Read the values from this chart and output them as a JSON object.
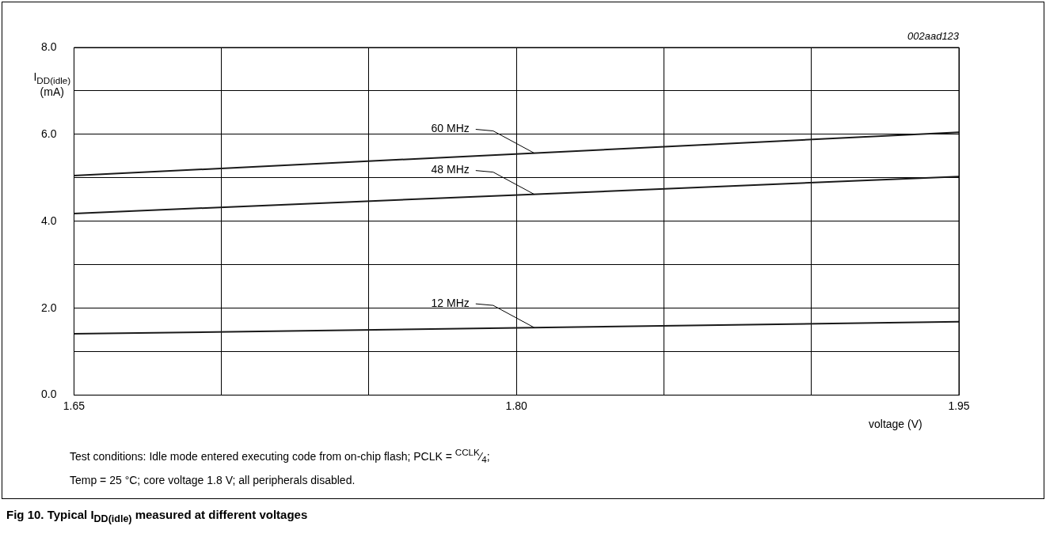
{
  "chart_data": {
    "type": "line",
    "title": "Fig 10. Typical I$_{DD(idle)}$ measured at different voltages",
    "xlabel": "voltage (V)",
    "ylabel": "I$_{DD(idle)}$ (mA)",
    "x": [
      1.65,
      1.95
    ],
    "series": [
      {
        "name": "60 MHz",
        "color": "#1a1a1a",
        "values": [
          5.05,
          6.05
        ]
      },
      {
        "name": "48 MHz",
        "color": "#1a1a1a",
        "values": [
          4.18,
          5.03
        ]
      },
      {
        "name": "12 MHz",
        "color": "#1a1a1a",
        "values": [
          1.41,
          1.69
        ]
      }
    ],
    "xlim": [
      1.65,
      1.95
    ],
    "xticks": [
      1.65,
      {
        "value": 1.7,
        "label": null
      },
      {
        "value": 1.75,
        "label": null
      },
      {
        "value": 1.8,
        "label": "1.80"
      },
      {
        "value": 1.85,
        "label": null
      },
      {
        "value": 1.9,
        "label": null
      },
      1.95
    ],
    "ylim": [
      0,
      8
    ],
    "yticks": [
      {
        "value": 0,
        "label": "0.0"
      },
      {
        "value": 1,
        "label": null
      },
      {
        "value": 2,
        "label": "2.0"
      },
      {
        "value": 3,
        "label": null
      },
      {
        "value": 4,
        "label": "4.0"
      },
      {
        "value": 5,
        "label": null
      },
      {
        "value": 6,
        "label": "6.0"
      },
      {
        "value": 7,
        "label": null
      },
      {
        "value": 8,
        "label": "8.0"
      }
    ],
    "grid": true,
    "legend": false,
    "marker": "none",
    "line_style": "solid",
    "annotations": [
      "002aad123",
      "Test conditions: Idle mode entered executing code from on-chip flash; PCLK = $^{CCLK}$⁄$_{4}$;",
      "Temp = 25 °C; core voltage 1.8 V; all peripherals disabled."
    ]
  }
}
